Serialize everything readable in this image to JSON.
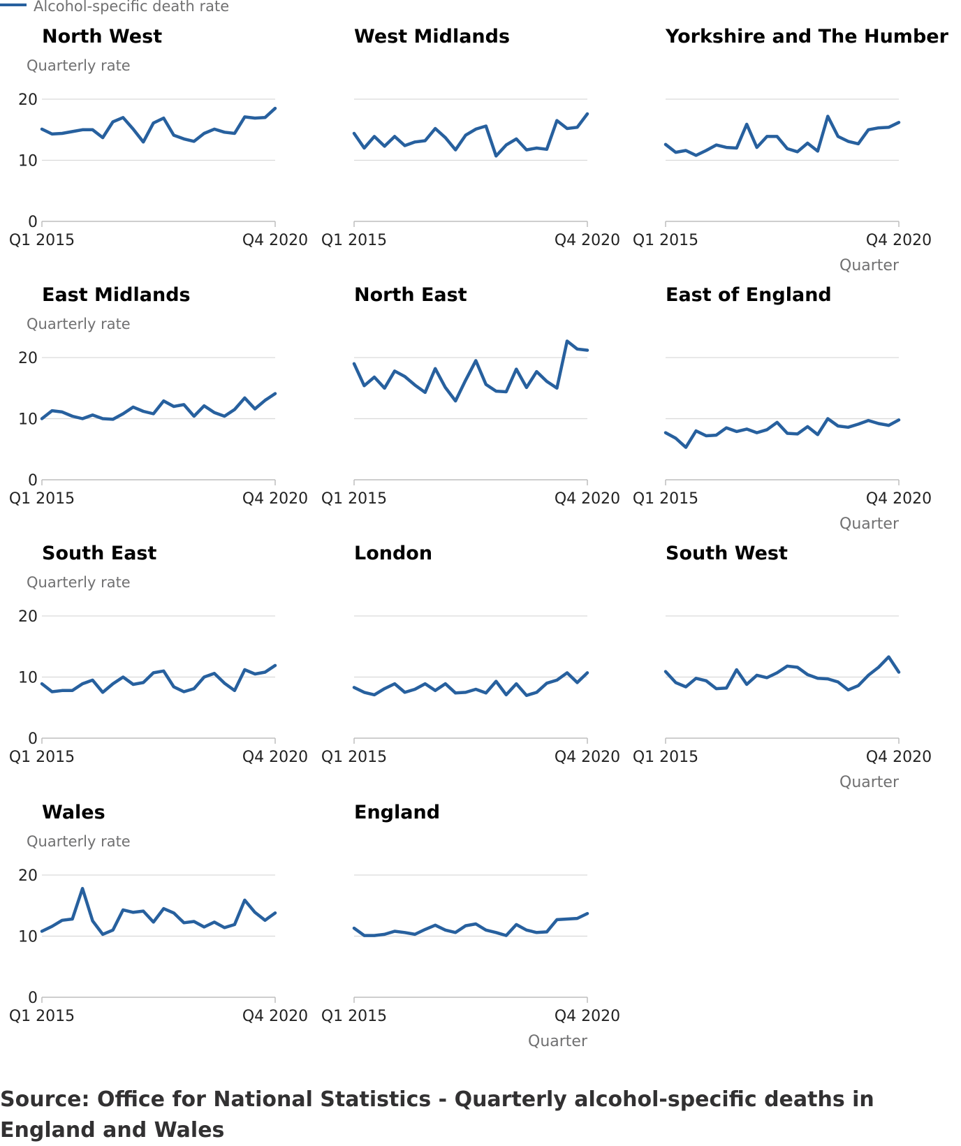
{
  "legend": {
    "label": "Alcohol-specific death rate",
    "color": "#27609e"
  },
  "source_text": "Source: Office for National Statistics - Quarterly alcohol-specific deaths in England and Wales",
  "chart_data": {
    "type": "line",
    "layout": "small-multiples",
    "x_tick_labels": [
      "Q1 2015",
      "Q4 2020"
    ],
    "xlabel": "Quarter",
    "ylabel": "Quarterly rate",
    "y_ticks": [
      0,
      10,
      20
    ],
    "ylim": [
      0,
      20
    ],
    "line_color": "#27609e",
    "panels": [
      {
        "name": "North West",
        "values": [
          15.1,
          14.3,
          14.4,
          14.7,
          15.0,
          15.0,
          13.7,
          16.3,
          17.0,
          15.1,
          13.0,
          16.1,
          16.9,
          14.1,
          13.5,
          13.1,
          14.4,
          15.1,
          14.6,
          14.4,
          17.1,
          16.9,
          17.0,
          18.5
        ]
      },
      {
        "name": "West Midlands",
        "values": [
          14.4,
          12.0,
          13.9,
          12.3,
          13.9,
          12.4,
          13.0,
          13.2,
          15.2,
          13.7,
          11.7,
          14.1,
          15.1,
          15.6,
          10.7,
          12.5,
          13.5,
          11.7,
          12.0,
          11.8,
          16.5,
          15.2,
          15.4,
          17.6
        ]
      },
      {
        "name": "Yorkshire and The Humber",
        "values": [
          12.6,
          11.3,
          11.6,
          10.8,
          11.6,
          12.5,
          12.1,
          12.0,
          15.9,
          12.1,
          13.9,
          13.9,
          11.9,
          11.4,
          12.8,
          11.5,
          17.2,
          13.9,
          13.1,
          12.7,
          15.0,
          15.3,
          15.4,
          16.2
        ]
      },
      {
        "name": "East Midlands",
        "values": [
          10.0,
          11.3,
          11.1,
          10.4,
          10.0,
          10.6,
          10.0,
          9.9,
          10.8,
          11.9,
          11.2,
          10.8,
          12.9,
          12.0,
          12.3,
          10.4,
          12.1,
          11.0,
          10.4,
          11.5,
          13.4,
          11.6,
          13.0,
          14.1
        ]
      },
      {
        "name": "North East",
        "values": [
          19.0,
          15.4,
          16.8,
          15.0,
          17.8,
          16.9,
          15.5,
          14.3,
          18.2,
          15.1,
          12.9,
          16.3,
          19.5,
          15.6,
          14.5,
          14.4,
          18.1,
          15.1,
          17.7,
          16.1,
          15.0,
          22.7,
          21.4,
          21.2
        ]
      },
      {
        "name": "East of England",
        "values": [
          7.7,
          6.8,
          5.3,
          8.0,
          7.2,
          7.3,
          8.5,
          7.9,
          8.3,
          7.7,
          8.2,
          9.4,
          7.6,
          7.5,
          8.7,
          7.4,
          10.0,
          8.8,
          8.6,
          9.1,
          9.7,
          9.2,
          8.9,
          9.8
        ]
      },
      {
        "name": "South East",
        "values": [
          8.9,
          7.6,
          7.8,
          7.8,
          8.9,
          9.5,
          7.5,
          8.9,
          10.0,
          8.8,
          9.1,
          10.7,
          11.0,
          8.4,
          7.6,
          8.1,
          10.0,
          10.6,
          9.0,
          7.8,
          11.2,
          10.5,
          10.8,
          11.9
        ]
      },
      {
        "name": "London",
        "values": [
          8.3,
          7.5,
          7.1,
          8.1,
          8.9,
          7.5,
          8.0,
          8.9,
          7.8,
          8.9,
          7.4,
          7.5,
          8.0,
          7.4,
          9.3,
          7.1,
          8.9,
          7.0,
          7.5,
          9.0,
          9.5,
          10.7,
          9.1,
          10.7
        ]
      },
      {
        "name": "South West",
        "values": [
          10.9,
          9.1,
          8.4,
          9.8,
          9.4,
          8.1,
          8.2,
          11.2,
          8.8,
          10.3,
          9.9,
          10.7,
          11.8,
          11.6,
          10.4,
          9.8,
          9.7,
          9.2,
          7.9,
          8.6,
          10.3,
          11.6,
          13.3,
          10.8
        ]
      },
      {
        "name": "Wales",
        "values": [
          10.8,
          11.6,
          12.6,
          12.8,
          17.8,
          12.5,
          10.3,
          11.0,
          14.3,
          13.9,
          14.1,
          12.3,
          14.5,
          13.8,
          12.2,
          12.4,
          11.5,
          12.3,
          11.4,
          11.9,
          15.9,
          13.9,
          12.6,
          13.8
        ]
      },
      {
        "name": "England",
        "values": [
          11.3,
          10.1,
          10.1,
          10.3,
          10.8,
          10.6,
          10.3,
          11.1,
          11.8,
          11.0,
          10.6,
          11.7,
          12.0,
          11.0,
          10.6,
          10.1,
          11.9,
          11.0,
          10.6,
          10.7,
          12.7,
          12.8,
          12.9,
          13.7
        ]
      }
    ]
  }
}
